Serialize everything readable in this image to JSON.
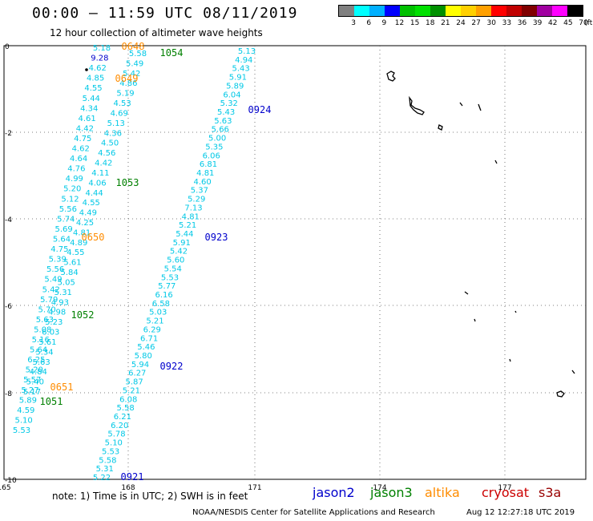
{
  "header": {
    "title": "00:00 – 11:59 UTC 08/11/2019",
    "subtitle": "12 hour collection of altimeter wave heights"
  },
  "legend": {
    "colors": [
      "#808080",
      "#00ffff",
      "#00b0ff",
      "#0000ff",
      "#00c000",
      "#00e000",
      "#009000",
      "#ffff00",
      "#ffd000",
      "#ffa000",
      "#ff0000",
      "#c00000",
      "#800000",
      "#a000a0",
      "#ff00ff",
      "#000000"
    ],
    "ticks": [
      "3",
      "6",
      "9",
      "12",
      "15",
      "18",
      "21",
      "24",
      "27",
      "30",
      "33",
      "36",
      "39",
      "42",
      "45",
      "70",
      "(ft)"
    ]
  },
  "axes": {
    "y_labels": [
      "0",
      "-2",
      "-4",
      "-6",
      "-8",
      "-10"
    ],
    "x_labels": [
      "165",
      "168",
      "171",
      "174",
      "177"
    ]
  },
  "map": {
    "wave_color": "#00c8e6",
    "track1_values": [
      "5.18",
      "9.28",
      "4.62",
      "4.85",
      "4.55",
      "5.44",
      "4.34",
      "4.61",
      "4.42",
      "4.75",
      "4.62",
      "4.64",
      "4.76",
      "4.99",
      "5.20",
      "5.12",
      "5.56",
      "5.74",
      "5.69",
      "5.64",
      "4.75",
      "5.39",
      "5.56",
      "5.49",
      "5.42",
      "5.79",
      "5.70",
      "5.63",
      "5.08",
      "5.16",
      "5.64",
      "6.25",
      "5.20",
      "5.57",
      "5.27",
      "5.89",
      "4.59",
      "5.10",
      "5.53"
    ],
    "track2_values": [
      "5.58",
      "5.49",
      "5.42",
      "4.86",
      "5.19",
      "4.53",
      "4.69",
      "5.13",
      "4.36",
      "4.50",
      "4.56",
      "4.42",
      "4.11",
      "4.06",
      "4.44",
      "4.55",
      "4.49",
      "4.25",
      "4.81",
      "4.89",
      "4.55",
      "5.61",
      "5.84",
      "5.05",
      "5.31",
      "4.93",
      "4.98",
      "5.23",
      "6.03",
      "5.61",
      "5.34",
      "5.63",
      "4.84",
      "5.40",
      "5.17"
    ],
    "track3_values": [
      "5.13",
      "4.94",
      "5.43",
      "5.91",
      "5.89",
      "6.04",
      "5.32",
      "5.43",
      "5.63",
      "5.66",
      "5.00",
      "5.35",
      "6.06",
      "6.81",
      "4.81",
      "4.60",
      "5.37",
      "5.29",
      "7.13",
      "4.81",
      "5.21",
      "5.44",
      "5.91",
      "5.42",
      "5.60",
      "5.54",
      "5.53",
      "5.77",
      "6.16",
      "6.58",
      "5.03",
      "5.21",
      "6.29",
      "6.71",
      "5.46",
      "5.80",
      "5.94",
      "6.27",
      "5.87",
      "5.21",
      "6.08",
      "5.58",
      "6.21",
      "6.20",
      "5.78",
      "5.10",
      "5.53",
      "5.58",
      "5.31",
      "5.22"
    ],
    "time_labels": [
      {
        "text": "0648",
        "color": "#ff8c00"
      },
      {
        "text": "1054",
        "color": "#008000"
      },
      {
        "text": "0649",
        "color": "#ff8c00"
      },
      {
        "text": "0924",
        "color": "#0000cc"
      },
      {
        "text": "1053",
        "color": "#008000"
      },
      {
        "text": "0650",
        "color": "#ff8c00"
      },
      {
        "text": "0923",
        "color": "#0000cc"
      },
      {
        "text": "1052",
        "color": "#008000"
      },
      {
        "text": "0922",
        "color": "#0000cc"
      },
      {
        "text": "0651",
        "color": "#ff8c00"
      },
      {
        "text": "1051",
        "color": "#008000"
      },
      {
        "text": "0921",
        "color": "#0000cc"
      }
    ]
  },
  "footer": {
    "note": "note:  1) Time is in UTC;  2) SWH is in feet",
    "satellites": [
      {
        "name": "jason2",
        "color": "#0000cc"
      },
      {
        "name": "jason3",
        "color": "#008000"
      },
      {
        "name": "altika",
        "color": "#ff8c00"
      },
      {
        "name": "cryosat",
        "color": "#cc0000"
      },
      {
        "name": "s3a",
        "color": "#990000"
      }
    ],
    "credit": "NOAA/NESDIS Center for Satellite Applications and Research",
    "timestamp": "Aug 12 12:27:18 UTC 2019"
  }
}
